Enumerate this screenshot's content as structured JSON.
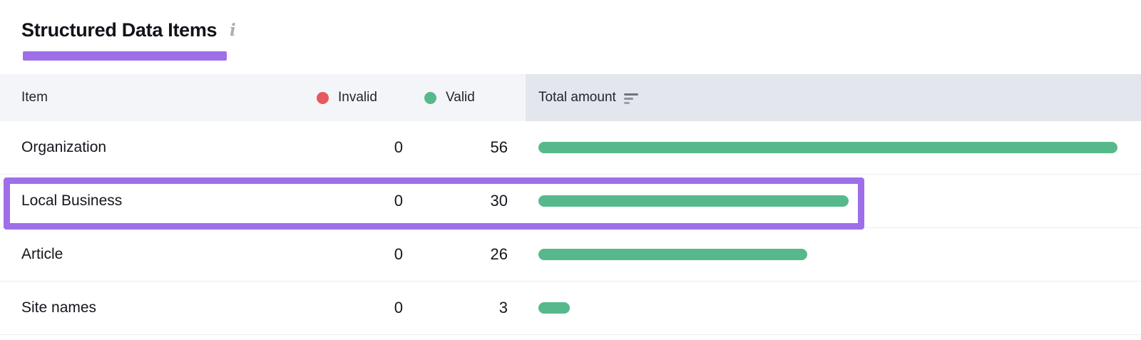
{
  "widget": {
    "title": "Structured Data Items",
    "info_icon_glyph": "i"
  },
  "table": {
    "header": {
      "item": "Item",
      "invalid": "Invalid",
      "valid": "Valid",
      "total_amount": "Total amount"
    },
    "rows": [
      {
        "item": "Organization",
        "invalid": "0",
        "valid": "56",
        "highlighted": false
      },
      {
        "item": "Local Business",
        "invalid": "0",
        "valid": "30",
        "highlighted": true
      },
      {
        "item": "Article",
        "invalid": "0",
        "valid": "26",
        "highlighted": false
      },
      {
        "item": "Site names",
        "invalid": "0",
        "valid": "3",
        "highlighted": false
      }
    ]
  },
  "colors": {
    "valid_green": "#57b98b",
    "invalid_red": "#e8595f",
    "annotation_purple": "#9e6fe8",
    "header_background": "#f4f5f8",
    "sorted_column_background": "#e4e6ed"
  }
}
